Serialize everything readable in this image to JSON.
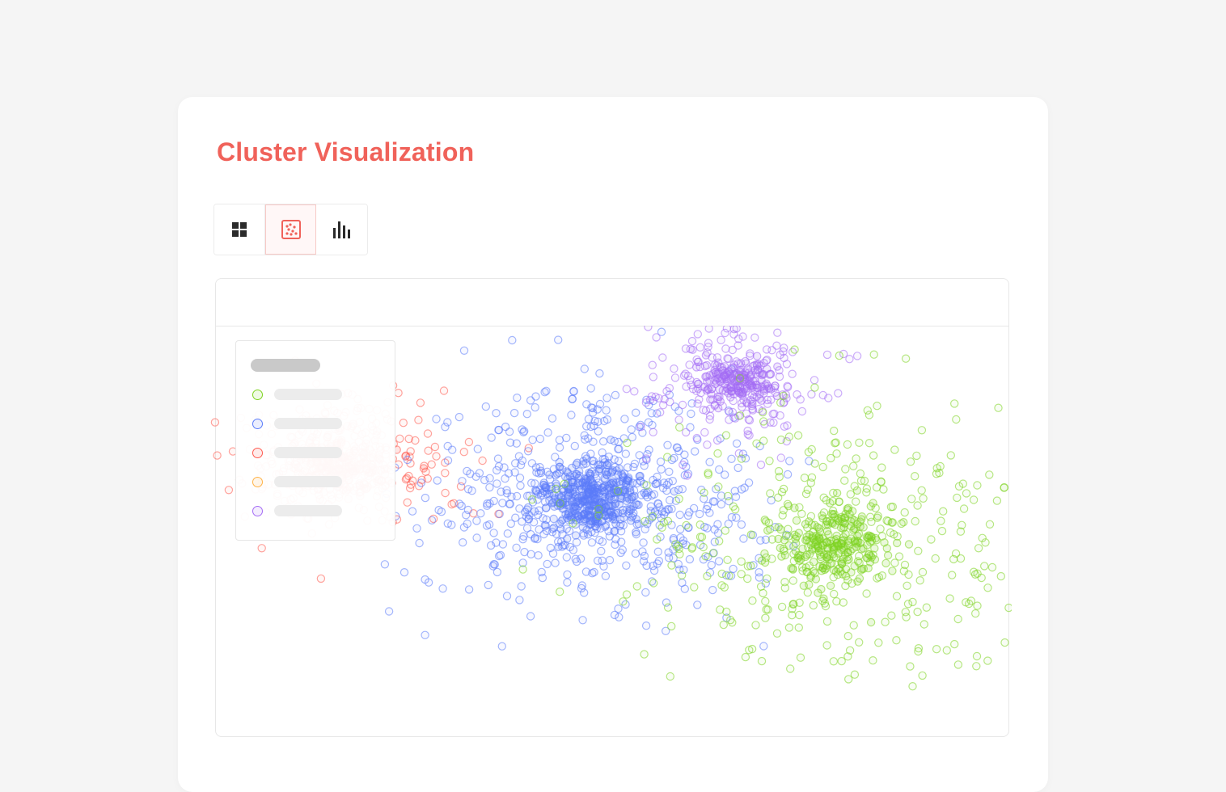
{
  "page": {
    "title": "Cluster Visualization"
  },
  "toolbar": {
    "views": [
      {
        "icon": "grid-icon",
        "active": false
      },
      {
        "icon": "scatter-icon",
        "active": true
      },
      {
        "icon": "bar-chart-icon",
        "active": false
      }
    ]
  },
  "colors": {
    "accent": "#f0625a",
    "green": "#7ed321",
    "blue": "#5b7cfa",
    "red": "#ff5a4f",
    "orange": "#ffb347",
    "purple": "#a46cf5"
  },
  "legend": {
    "placement": "top-left",
    "entries": [
      {
        "color": "#7ed321"
      },
      {
        "color": "#5b7cfa"
      },
      {
        "color": "#ff5a4f"
      },
      {
        "color": "#ffb347"
      },
      {
        "color": "#a46cf5"
      }
    ]
  },
  "chart_data": {
    "type": "scatter",
    "title": "",
    "xlabel": "",
    "ylabel": "",
    "xlim": [
      0,
      100
    ],
    "ylim": [
      0,
      100
    ],
    "grid": false,
    "clusters": [
      {
        "color": "#ff5a4f",
        "center": [
          16,
          62
        ],
        "spread": [
          6.5,
          9
        ],
        "core": [
          3,
          4
        ],
        "count": 520
      },
      {
        "color": "#5b7cfa",
        "center": [
          48,
          53
        ],
        "spread": [
          10,
          15
        ],
        "core": [
          3,
          4.5
        ],
        "count": 950
      },
      {
        "color": "#a46cf5",
        "center": [
          65,
          85
        ],
        "spread": [
          5.5,
          8
        ],
        "core": [
          2.5,
          3
        ],
        "count": 360
      },
      {
        "color": "#7ed321",
        "center": [
          78,
          40
        ],
        "spread": [
          14,
          20
        ],
        "core": [
          3.5,
          6
        ],
        "count": 640
      },
      {
        "color": "#ffb347",
        "center": [
          20,
          70
        ],
        "spread": [
          3,
          3
        ],
        "core": [
          2,
          2
        ],
        "count": 0
      }
    ]
  }
}
